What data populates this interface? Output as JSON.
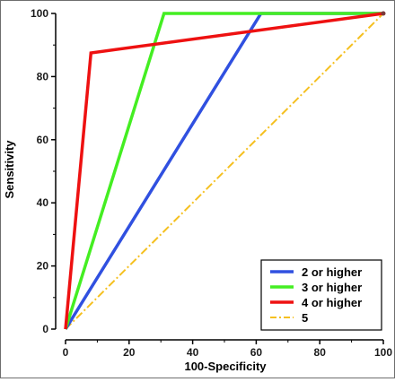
{
  "chart_data": {
    "type": "line",
    "xlabel": "100-Specificity",
    "ylabel": "Sensitivity",
    "xlim": [
      0,
      100
    ],
    "ylim": [
      0,
      100
    ],
    "x_ticks": [
      0,
      20,
      40,
      60,
      80,
      100
    ],
    "y_ticks": [
      0,
      20,
      40,
      60,
      80,
      100
    ],
    "grid": false,
    "legend_position": "bottom-right",
    "series": [
      {
        "name": "2 or higher",
        "color": "#3050e0",
        "dash": "solid",
        "points": [
          [
            0,
            0
          ],
          [
            61.5,
            100
          ],
          [
            100,
            100
          ]
        ]
      },
      {
        "name": "3 or higher",
        "color": "#44ee22",
        "dash": "solid",
        "points": [
          [
            0,
            0
          ],
          [
            31,
            100
          ],
          [
            100,
            100
          ]
        ]
      },
      {
        "name": "4 or higher",
        "color": "#ee1111",
        "dash": "solid",
        "points": [
          [
            0,
            0
          ],
          [
            8,
            87.5
          ],
          [
            100,
            100
          ]
        ]
      },
      {
        "name": "5",
        "color": "#f5c020",
        "dash": "dashdot",
        "points": [
          [
            0,
            0
          ],
          [
            100,
            100
          ]
        ]
      }
    ]
  }
}
